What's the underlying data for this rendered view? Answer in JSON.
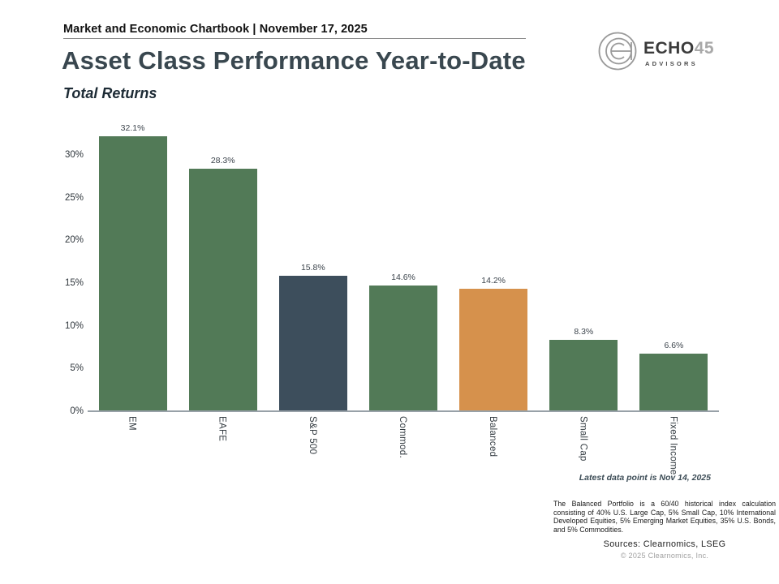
{
  "header": {
    "kicker": "Market and Economic Chartbook | November 17, 2025",
    "title": "Asset Class Performance Year-to-Date",
    "subtitle": "Total Returns"
  },
  "logo": {
    "name_primary": "ECHO",
    "name_number": "45",
    "tagline": "ADVISORS",
    "icon": "echo45-emblem-icon",
    "color_dark": "#3b3b3b",
    "color_gray": "#a9a9a9"
  },
  "chart_data": {
    "type": "bar",
    "title": "Asset Class Performance Year-to-Date",
    "subtitle": "Total Returns",
    "categories": [
      "EM",
      "EAFE",
      "S&P 500",
      "Commod.",
      "Balanced",
      "Small Cap",
      "Fixed Income"
    ],
    "values": [
      32.1,
      28.3,
      15.8,
      14.6,
      14.2,
      8.3,
      6.6
    ],
    "value_labels": [
      "32.1%",
      "28.3%",
      "15.8%",
      "14.6%",
      "14.2%",
      "8.3%",
      "6.6%"
    ],
    "bar_colors": [
      "#527a57",
      "#527a57",
      "#3d4e5c",
      "#527a57",
      "#d6914c",
      "#527a57",
      "#527a57"
    ],
    "yticks": [
      0,
      5,
      10,
      15,
      20,
      25,
      30
    ],
    "ytick_labels": [
      "0%",
      "5%",
      "10%",
      "15%",
      "20%",
      "25%",
      "30%"
    ],
    "ylim": [
      0,
      34
    ],
    "xlabel": "",
    "ylabel": "",
    "grid": false,
    "legend": false,
    "latest_note": "Latest data point is Nov 14, 2025"
  },
  "footer": {
    "note": "The Balanced Portfolio is a 60/40 historical index calculation consisting of 40% U.S. Large Cap, 5% Small Cap, 10% International Developed Equities, 5% Emerging Market Equities, 35% U.S. Bonds, and 5% Commodities.",
    "sources": "Sources: Clearnomics, LSEG",
    "copyright": "© 2025 Clearnomics, Inc."
  }
}
